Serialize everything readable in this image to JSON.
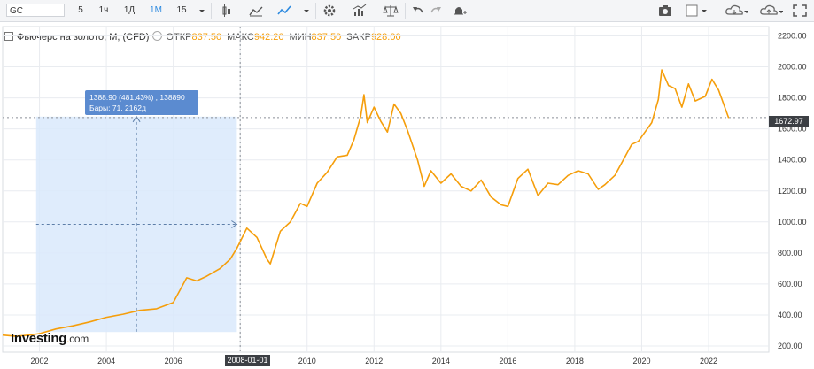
{
  "toolbar": {
    "symbol": "GC",
    "intervals": [
      "5",
      "1ч",
      "1Д",
      "1М"
    ],
    "active_interval": "1М",
    "count": "15",
    "icons": [
      "candles-icon",
      "area-icon",
      "line-icon",
      "chevron-down-icon",
      "gear-icon",
      "indicators-icon",
      "scales-icon",
      "undo-icon",
      "redo-icon",
      "alert-icon",
      "camera-icon",
      "color-icon",
      "cloud-download-icon",
      "cloud-upload-icon",
      "fullscreen-icon"
    ]
  },
  "legend": {
    "title": "Фьючерс на золото, М, (CFD)",
    "open_label": "ОТКР",
    "open": "837.50",
    "high_label": "МАКС",
    "high": "942.20",
    "low_label": "МИН",
    "low": "837.50",
    "close_label": "ЗАКР",
    "close": "928.00"
  },
  "tooltip": {
    "line1": "1388.90 (481.43%) , 138890",
    "line2": "Бары: 71, 2162д"
  },
  "crosshair": {
    "price_label": "1672.97",
    "date_label": "2008-01-01"
  },
  "logo": {
    "brand": "Investing",
    "suffix": "com"
  },
  "colors": {
    "line": "#f59e0b",
    "grid": "#e9ecf0",
    "measure_fill": "#d9e9fb"
  },
  "chart_data": {
    "type": "line",
    "title": "Фьючерс на золото, М, (CFD)",
    "xlabel": "",
    "ylabel": "",
    "x_ticks": [
      "2002",
      "2004",
      "2006",
      "2008",
      "2010",
      "2012",
      "2014",
      "2016",
      "2018",
      "2020",
      "2022"
    ],
    "y_ticks": [
      "200.00",
      "400.00",
      "600.00",
      "800.00",
      "1000.00",
      "1200.00",
      "1400.00",
      "1600.00",
      "1800.00",
      "2000.00",
      "2200.00"
    ],
    "ylim": [
      160,
      2260
    ],
    "xlim": [
      2000.9,
      2023.8
    ],
    "series": [
      {
        "x": [
          2000.9,
          2001.3,
          2001.7,
          2002.0,
          2002.5,
          2003.0,
          2003.5,
          2004.0,
          2004.5,
          2005.0,
          2005.5,
          2006.0,
          2006.4,
          2006.7,
          2007.0,
          2007.4,
          2007.7,
          2007.9,
          2008.2,
          2008.5,
          2008.8,
          2008.9,
          2009.2,
          2009.5,
          2009.8,
          2010.0,
          2010.3,
          2010.6,
          2010.9,
          2011.2,
          2011.4,
          2011.6,
          2011.7,
          2011.8,
          2012.0,
          2012.2,
          2012.4,
          2012.6,
          2012.8,
          2013.0,
          2013.3,
          2013.5,
          2013.7,
          2014.0,
          2014.3,
          2014.6,
          2014.9,
          2015.2,
          2015.5,
          2015.8,
          2016.0,
          2016.3,
          2016.6,
          2016.9,
          2017.2,
          2017.5,
          2017.8,
          2018.1,
          2018.4,
          2018.7,
          2018.9,
          2019.2,
          2019.5,
          2019.7,
          2019.9,
          2020.1,
          2020.3,
          2020.5,
          2020.6,
          2020.8,
          2021.0,
          2021.2,
          2021.4,
          2021.6,
          2021.9,
          2022.1,
          2022.3,
          2022.6
        ],
        "y": [
          270,
          262,
          270,
          280,
          310,
          330,
          355,
          385,
          405,
          430,
          440,
          480,
          640,
          620,
          650,
          700,
          760,
          830,
          960,
          900,
          760,
          730,
          940,
          1000,
          1120,
          1100,
          1250,
          1320,
          1420,
          1430,
          1530,
          1680,
          1820,
          1640,
          1740,
          1650,
          1580,
          1760,
          1700,
          1590,
          1400,
          1230,
          1330,
          1250,
          1310,
          1230,
          1200,
          1270,
          1160,
          1110,
          1100,
          1280,
          1340,
          1170,
          1250,
          1240,
          1300,
          1330,
          1310,
          1210,
          1240,
          1300,
          1420,
          1500,
          1520,
          1580,
          1640,
          1790,
          1980,
          1880,
          1860,
          1740,
          1890,
          1780,
          1810,
          1920,
          1850,
          1670
        ]
      }
    ],
    "measure_range": {
      "x": [
        2001.9,
        2007.9
      ],
      "y": [
        290,
        1679
      ]
    },
    "crosshair": {
      "x": 2008.0,
      "y": 1672.97
    },
    "grid": true
  }
}
